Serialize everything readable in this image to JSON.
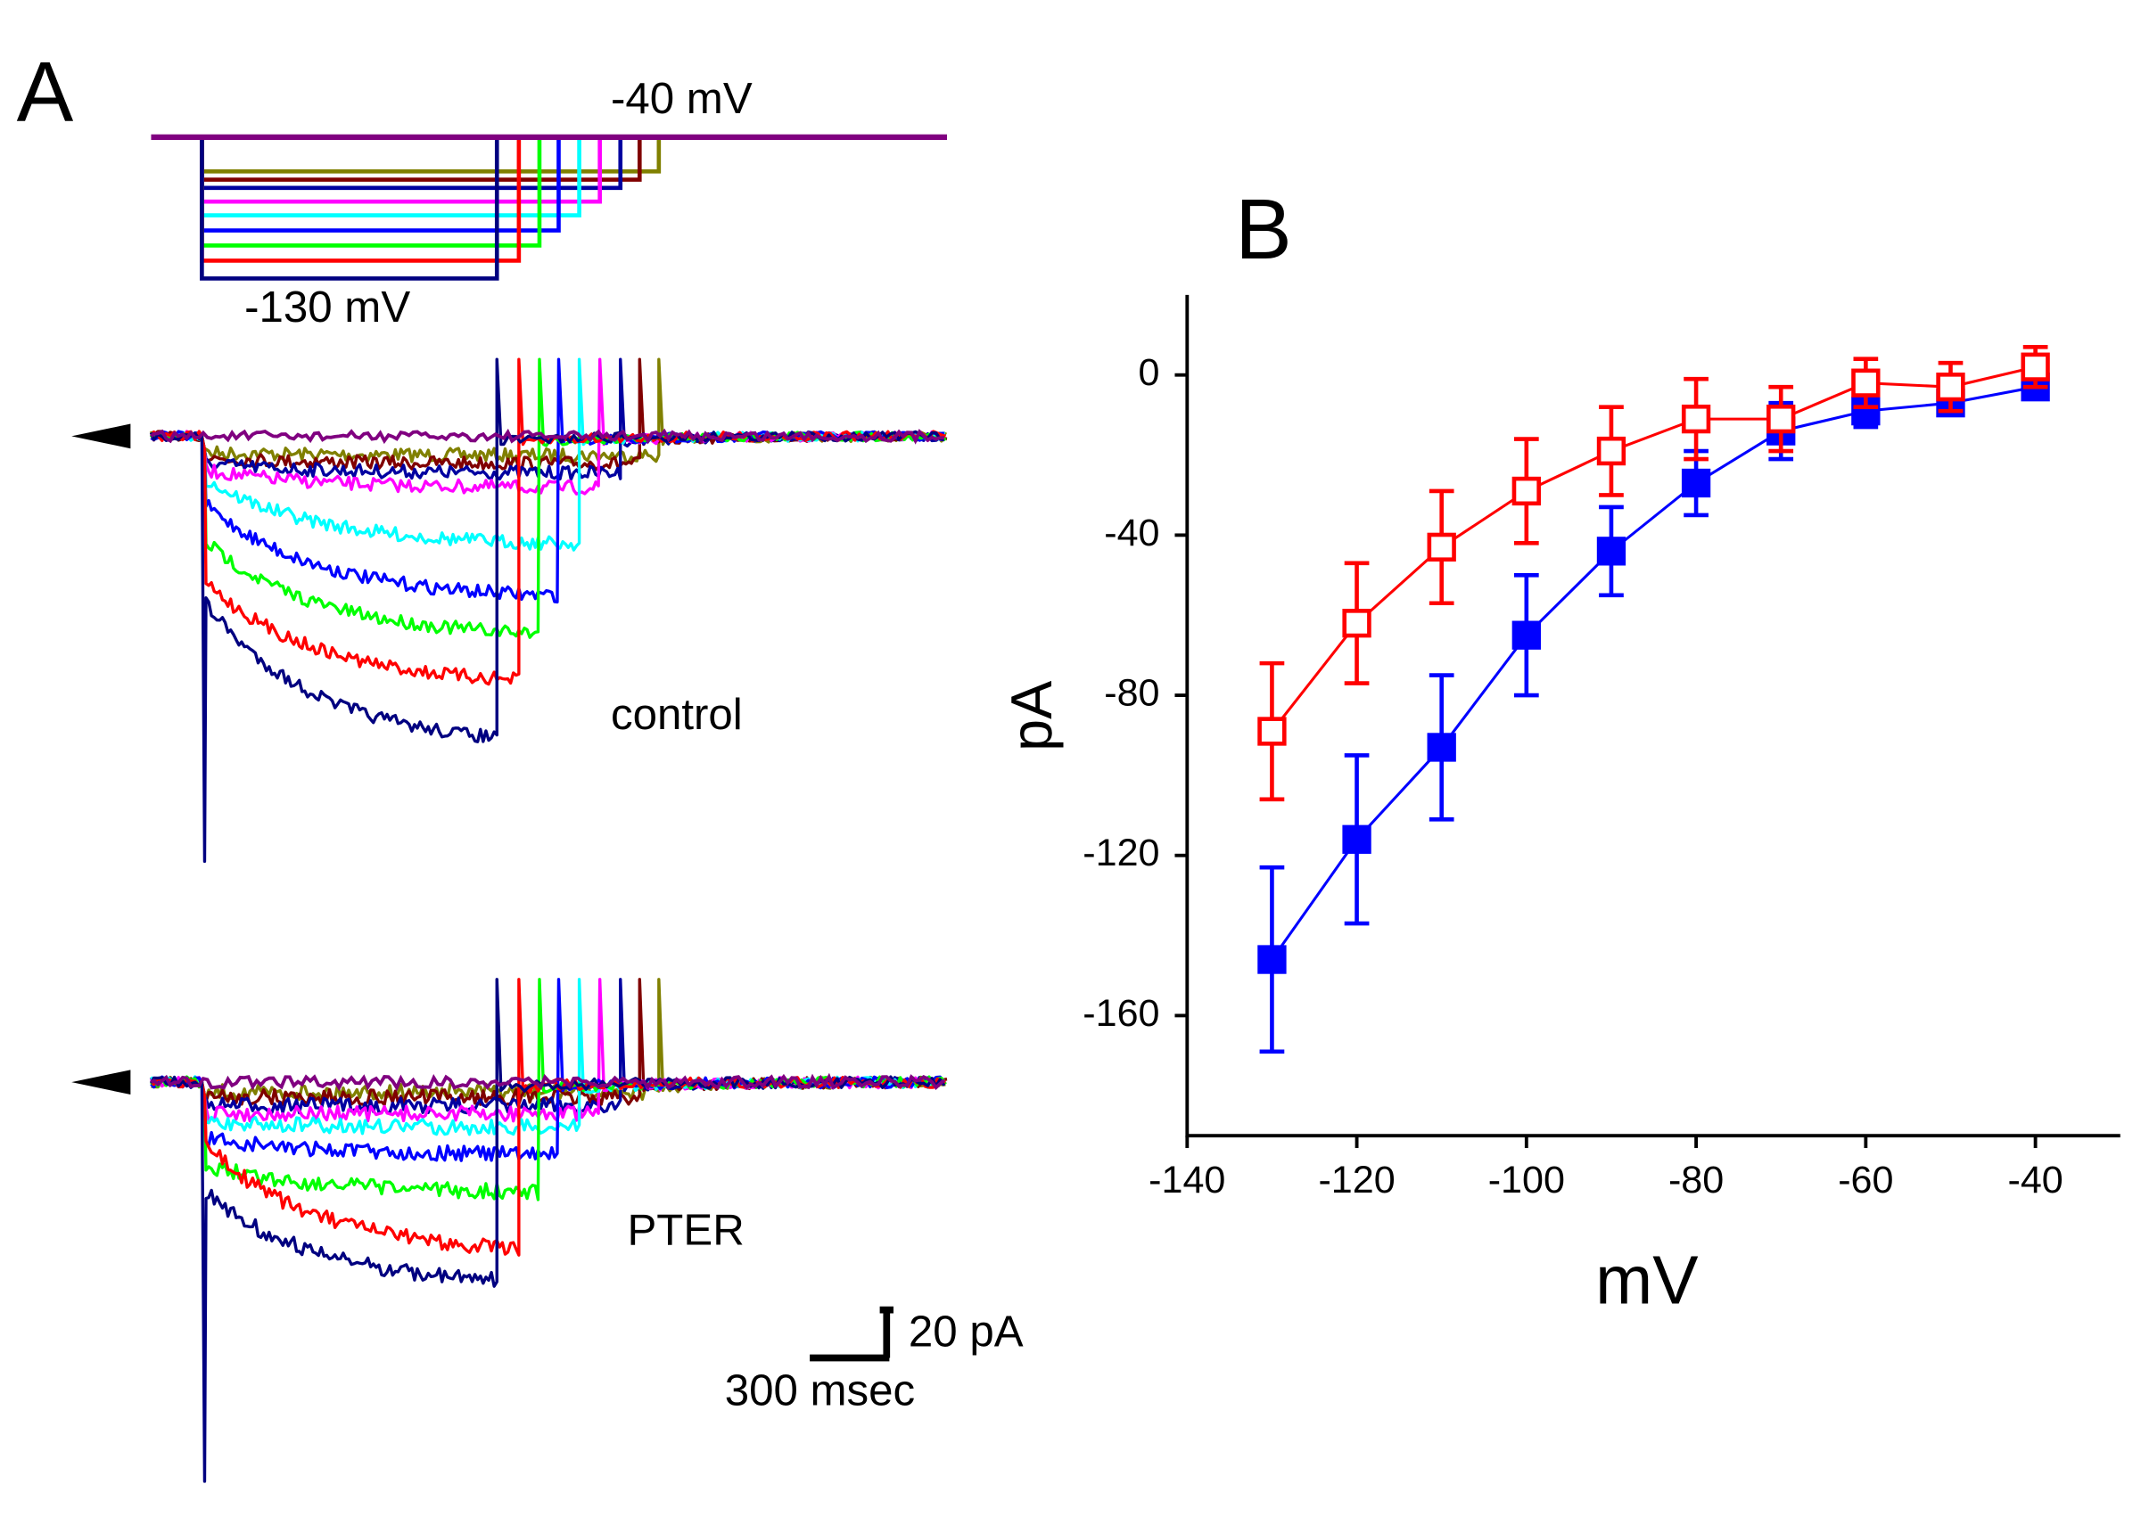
{
  "panel_a": {
    "label": "A",
    "protocol_top": "-40 mV",
    "protocol_bottom": "-130 mV",
    "trace_labels": [
      "control",
      "PTER"
    ],
    "scale_y": "20 pA",
    "scale_x": "300 msec"
  },
  "chart_data": {
    "type": "line",
    "panel_label": "B",
    "xlabel": "mV",
    "ylabel": "pA",
    "x": [
      -130,
      -120,
      -110,
      -100,
      -90,
      -80,
      -70,
      -60,
      -50,
      -40
    ],
    "series": [
      {
        "color": "#0000ff",
        "marker": "filled-square",
        "values": [
          -146,
          -116,
          -93,
          -65,
          -44,
          -27,
          -14,
          -9,
          -7,
          -3
        ],
        "errors": [
          23,
          21,
          18,
          15,
          11,
          8,
          7,
          4,
          3,
          3
        ]
      },
      {
        "color": "#ff0000",
        "marker": "open-square",
        "values": [
          -89,
          -62,
          -43,
          -29,
          -19,
          -11,
          -11,
          -2,
          -3,
          2
        ],
        "errors": [
          17,
          15,
          14,
          13,
          11,
          10,
          8,
          6,
          6,
          5
        ]
      }
    ],
    "xlim": [
      -140,
      -30
    ],
    "xticks": [
      -140,
      -120,
      -100,
      -80,
      -60,
      -40
    ],
    "ylim": [
      -190,
      20
    ],
    "yticks": [
      -160,
      -120,
      -80,
      -40,
      0
    ]
  }
}
